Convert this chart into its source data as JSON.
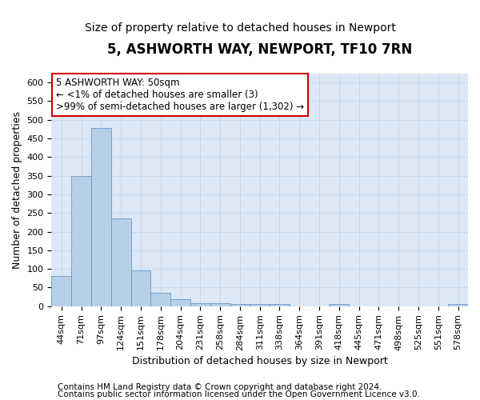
{
  "title1": "5, ASHWORTH WAY, NEWPORT, TF10 7RN",
  "title2": "Size of property relative to detached houses in Newport",
  "xlabel": "Distribution of detached houses by size in Newport",
  "ylabel": "Number of detached properties",
  "categories": [
    "44sqm",
    "71sqm",
    "97sqm",
    "124sqm",
    "151sqm",
    "178sqm",
    "204sqm",
    "231sqm",
    "258sqm",
    "284sqm",
    "311sqm",
    "338sqm",
    "364sqm",
    "391sqm",
    "418sqm",
    "445sqm",
    "471sqm",
    "498sqm",
    "525sqm",
    "551sqm",
    "578sqm"
  ],
  "values": [
    82,
    350,
    478,
    236,
    97,
    35,
    18,
    8,
    8,
    5,
    5,
    5,
    0,
    0,
    5,
    0,
    0,
    0,
    0,
    0,
    5
  ],
  "bar_color": "#b8cfe8",
  "bar_edge_color": "#6699cc",
  "annotation_text": "5 ASHWORTH WAY: 50sqm\n← <1% of detached houses are smaller (3)\n>99% of semi-detached houses are larger (1,302) →",
  "annotation_box_facecolor": "#ffffff",
  "annotation_box_edgecolor": "#cc0000",
  "ylim": [
    0,
    625
  ],
  "yticks": [
    0,
    50,
    100,
    150,
    200,
    250,
    300,
    350,
    400,
    450,
    500,
    550,
    600
  ],
  "grid_color": "#c8d8ee",
  "bg_color": "#dce8f5",
  "footer_line1": "Contains HM Land Registry data © Crown copyright and database right 2024.",
  "footer_line2": "Contains public sector information licensed under the Open Government Licence v3.0.",
  "title1_fontsize": 12,
  "title2_fontsize": 10,
  "xlabel_fontsize": 9,
  "ylabel_fontsize": 9,
  "tick_fontsize": 8,
  "annotation_fontsize": 8.5,
  "footer_fontsize": 7.5
}
